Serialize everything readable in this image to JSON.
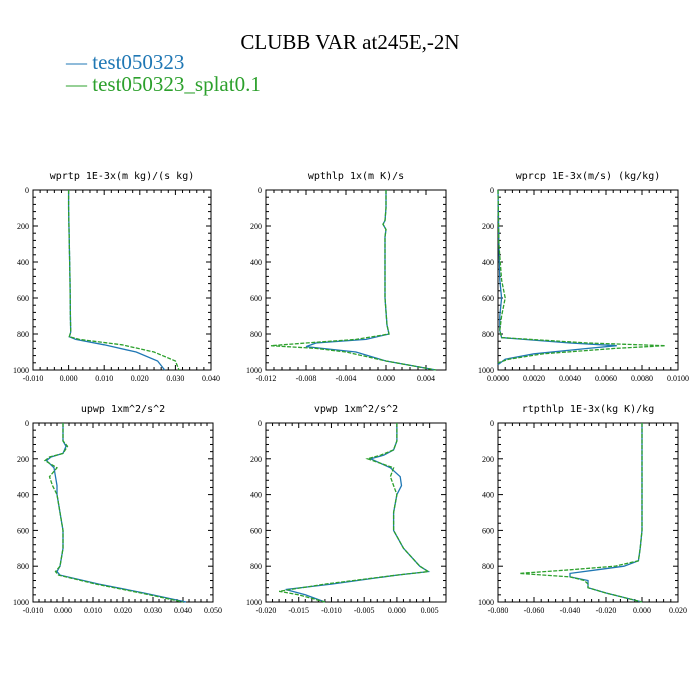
{
  "title": "CLUBB VAR at245E,-2N",
  "legend": [
    {
      "label": "test050323",
      "color": "#1f77b4",
      "dash": "solid"
    },
    {
      "label": "test050323_splat0.1",
      "color": "#2ca02c",
      "dash": "dashed"
    }
  ],
  "chart_data": [
    {
      "type": "line",
      "title": "wprtp  1E-3x(m kg)/(s kg)",
      "xlim": [
        -0.01,
        0.04
      ],
      "xticks": [
        -0.01,
        0,
        0.01,
        0.02,
        0.03,
        0.04
      ],
      "xtick_labels": [
        "-0.010",
        "0.000",
        "0.010",
        "0.020",
        "0.030",
        "0.040"
      ],
      "ylim": [
        1000,
        0
      ],
      "yticks": [
        0,
        200,
        400,
        600,
        800,
        1000
      ],
      "ytick_labels": [
        "0",
        "200",
        "400",
        "600",
        "800",
        "1000"
      ],
      "series": [
        {
          "y": [
            0,
            100,
            300,
            500,
            700,
            790,
            815,
            830,
            860,
            900,
            950,
            1000
          ],
          "x": [
            0.0,
            0.0,
            0.0002,
            0.0004,
            0.0005,
            0.0006,
            0.0002,
            0.002,
            0.01,
            0.019,
            0.025,
            0.027
          ]
        },
        {
          "y": [
            0,
            100,
            300,
            500,
            700,
            790,
            815,
            830,
            860,
            900,
            950,
            1000
          ],
          "x": [
            0.0,
            0.0,
            0.0002,
            0.0004,
            0.0005,
            0.0006,
            0.0002,
            0.003,
            0.015,
            0.024,
            0.03,
            0.031
          ]
        }
      ]
    },
    {
      "type": "line",
      "title": "wpthlp  1x(m K)/s",
      "xlim": [
        -0.012,
        0.006
      ],
      "xticks": [
        -0.012,
        -0.008,
        -0.004,
        0,
        0.004
      ],
      "xtick_labels": [
        "-0.012",
        "-0.008",
        "-0.004",
        "0.000",
        "0.004"
      ],
      "ylim": [
        1000,
        0
      ],
      "yticks": [
        0,
        200,
        400,
        600,
        800,
        1000
      ],
      "ytick_labels": [
        "0",
        "200",
        "400",
        "600",
        "800",
        "1000"
      ],
      "series": [
        {
          "y": [
            0,
            100,
            170,
            190,
            220,
            260,
            400,
            600,
            750,
            800,
            830,
            850,
            870,
            900,
            950,
            980,
            1000
          ],
          "x": [
            0.0,
            0.0,
            -0.0001,
            -0.0003,
            0.0,
            -0.0001,
            -0.0001,
            -0.0001,
            0.0001,
            0.0003,
            -0.002,
            -0.007,
            -0.008,
            -0.003,
            0.0,
            0.003,
            0.005
          ]
        },
        {
          "y": [
            0,
            100,
            170,
            190,
            220,
            260,
            400,
            600,
            750,
            800,
            830,
            850,
            865,
            880,
            900,
            950,
            980,
            1000
          ],
          "x": [
            0.0,
            0.0,
            -0.0001,
            -0.0003,
            0.0,
            -0.0001,
            -0.0001,
            -0.0001,
            0.0001,
            0.0003,
            -0.003,
            -0.008,
            -0.0115,
            -0.007,
            -0.004,
            0.0,
            0.003,
            0.005
          ]
        }
      ]
    },
    {
      "type": "line",
      "title": "wprcp  1E-3x(m/s) (kg/kg)",
      "xlim": [
        0,
        0.01
      ],
      "xticks": [
        0,
        0.002,
        0.004,
        0.006,
        0.008,
        0.01
      ],
      "xtick_labels": [
        "0.0000",
        "0.0020",
        "0.0040",
        "0.0060",
        "0.0080",
        "0.0100"
      ],
      "ylim": [
        1000,
        0
      ],
      "yticks": [
        0,
        200,
        400,
        600,
        800,
        1000
      ],
      "ytick_labels": [
        "0",
        "200",
        "400",
        "600",
        "800",
        "1000"
      ],
      "series": [
        {
          "y": [
            0,
            300,
            500,
            600,
            700,
            780,
            820,
            850,
            865,
            880,
            910,
            940,
            970
          ],
          "x": [
            0.0,
            5e-05,
            0.0001,
            0.0002,
            0.0001,
            0.0001,
            0.0002,
            0.004,
            0.0066,
            0.005,
            0.002,
            0.0004,
            0.0
          ]
        },
        {
          "y": [
            0,
            300,
            500,
            600,
            700,
            780,
            820,
            850,
            865,
            880,
            910,
            940,
            960
          ],
          "x": [
            0.0,
            5e-05,
            0.0002,
            0.0004,
            0.0002,
            0.0001,
            0.0002,
            0.005,
            0.0093,
            0.0065,
            0.0025,
            0.0006,
            0.0
          ]
        }
      ]
    },
    {
      "type": "line",
      "title": "upwp  1xm^2/s^2",
      "xlim": [
        -0.01,
        0.05
      ],
      "xticks": [
        -0.01,
        0,
        0.01,
        0.02,
        0.03,
        0.04,
        0.05
      ],
      "xtick_labels": [
        "-0.010",
        "0.000",
        "0.010",
        "0.020",
        "0.030",
        "0.040",
        "0.050"
      ],
      "ylim": [
        1000,
        0
      ],
      "yticks": [
        0,
        200,
        400,
        600,
        800,
        1000
      ],
      "ytick_labels": [
        "0",
        "200",
        "400",
        "600",
        "800",
        "1000"
      ],
      "series": [
        {
          "y": [
            0,
            100,
            130,
            170,
            190,
            210,
            250,
            300,
            350,
            400,
            500,
            600,
            700,
            800,
            830,
            850,
            900,
            950,
            1000
          ],
          "x": [
            0.0,
            0.0,
            0.001,
            0.0,
            -0.004,
            -0.0055,
            -0.003,
            -0.0025,
            -0.002,
            -0.002,
            -0.001,
            0.0,
            0.0,
            -0.001,
            -0.002,
            -0.001,
            0.012,
            0.027,
            0.041
          ]
        },
        {
          "y": [
            0,
            100,
            130,
            170,
            190,
            210,
            250,
            300,
            350,
            400,
            500,
            600,
            700,
            800,
            830,
            850,
            900,
            950,
            1000
          ],
          "x": [
            0.0,
            0.0,
            0.0015,
            0.0,
            -0.0045,
            -0.006,
            -0.002,
            -0.0045,
            -0.0035,
            -0.002,
            -0.001,
            0.0,
            0.0,
            -0.001,
            -0.0025,
            -0.0015,
            0.011,
            0.026,
            0.04
          ]
        }
      ]
    },
    {
      "type": "line",
      "title": "vpwp  1xm^2/s^2",
      "xlim": [
        -0.02,
        0.0075
      ],
      "xticks": [
        -0.02,
        -0.015,
        -0.01,
        -0.005,
        0,
        0.005
      ],
      "xtick_labels": [
        "-0.020",
        "-0.015",
        "-0.010",
        "-0.005",
        "0.000",
        "0.005"
      ],
      "ylim": [
        1000,
        0
      ],
      "yticks": [
        0,
        200,
        400,
        600,
        800,
        1000
      ],
      "ytick_labels": [
        "0",
        "200",
        "400",
        "600",
        "800",
        "1000"
      ],
      "series": [
        {
          "y": [
            0,
            100,
            150,
            180,
            200,
            250,
            300,
            350,
            400,
            500,
            600,
            700,
            800,
            830,
            850,
            900,
            930,
            960,
            1000
          ],
          "x": [
            0.0,
            0.0,
            -0.0005,
            -0.002,
            -0.004,
            -0.001,
            0.0005,
            0.0007,
            0.0,
            -0.0005,
            -0.0005,
            0.001,
            0.0035,
            0.0048,
            0.0,
            -0.01,
            -0.017,
            -0.014,
            -0.011
          ]
        },
        {
          "y": [
            0,
            100,
            150,
            180,
            200,
            250,
            300,
            350,
            400,
            500,
            600,
            700,
            800,
            830,
            850,
            900,
            940,
            960,
            1000
          ],
          "x": [
            0.0,
            0.0,
            -0.0005,
            -0.0025,
            -0.0045,
            -0.0005,
            -0.001,
            -0.0005,
            0.0,
            -0.0005,
            -0.0005,
            0.001,
            0.0035,
            0.0048,
            0.0,
            -0.011,
            -0.018,
            -0.015,
            -0.011
          ]
        }
      ]
    },
    {
      "type": "line",
      "title": "rtpthlp  1E-3x(kg K)/kg",
      "xlim": [
        -0.08,
        0.02
      ],
      "xticks": [
        -0.08,
        -0.06,
        -0.04,
        -0.02,
        0,
        0.02
      ],
      "xtick_labels": [
        "-0.080",
        "-0.060",
        "-0.040",
        "-0.020",
        "0.000",
        "0.020"
      ],
      "ylim": [
        1000,
        0
      ],
      "yticks": [
        0,
        200,
        400,
        600,
        800,
        1000
      ],
      "ytick_labels": [
        "0",
        "200",
        "400",
        "600",
        "800",
        "1000"
      ],
      "series": [
        {
          "y": [
            0,
            300,
            600,
            700,
            770,
            800,
            820,
            840,
            860,
            880,
            900,
            920,
            950,
            1000
          ],
          "x": [
            0.0,
            0.0,
            0.0,
            -0.001,
            -0.002,
            -0.01,
            -0.025,
            -0.04,
            -0.04,
            -0.03,
            -0.03,
            -0.03,
            -0.02,
            0.0
          ]
        },
        {
          "y": [
            0,
            300,
            600,
            700,
            770,
            800,
            820,
            840,
            860,
            880,
            900,
            920,
            950,
            1000
          ],
          "x": [
            0.0,
            0.0,
            0.0,
            -0.001,
            -0.002,
            -0.015,
            -0.04,
            -0.068,
            -0.04,
            -0.032,
            -0.03,
            -0.03,
            -0.02,
            0.0
          ]
        }
      ]
    }
  ]
}
